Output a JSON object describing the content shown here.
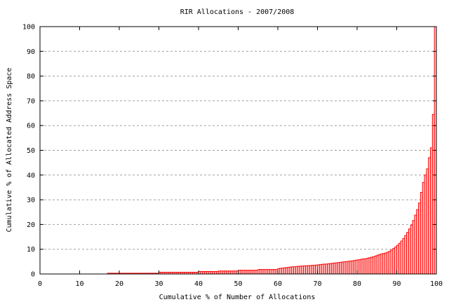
{
  "chart_data": {
    "type": "bar",
    "title": "RIR Allocations - 2007/2008",
    "xlabel": "Cumulative % of Number of Allocations",
    "ylabel": "Cumulative % of Allocated Address Space",
    "xlim": [
      0,
      100
    ],
    "ylim": [
      0,
      100
    ],
    "x_ticks": [
      "0",
      "10",
      "20",
      "30",
      "40",
      "50",
      "60",
      "70",
      "80",
      "90",
      "100"
    ],
    "y_ticks": [
      "0",
      "10",
      "20",
      "30",
      "40",
      "50",
      "60",
      "70",
      "80",
      "90",
      "100"
    ],
    "grid": "horizontal dashed",
    "bar_width": 0.5,
    "colors": {
      "bar_stroke": "#ff0000",
      "bar_fill": "#ffd0d0",
      "grid": "#a0a0a0"
    },
    "values": [
      0,
      0,
      0,
      0,
      0,
      0,
      0,
      0,
      0,
      0,
      0,
      0,
      0,
      0,
      0,
      0,
      0,
      0,
      0,
      0,
      0,
      0,
      0,
      0,
      0,
      0,
      0,
      0,
      0,
      0,
      0,
      0,
      0,
      0,
      0.3,
      0.3,
      0.3,
      0.3,
      0.3,
      0.3,
      0.3,
      0.3,
      0.3,
      0.3,
      0.3,
      0.3,
      0.3,
      0.3,
      0.3,
      0.3,
      0.3,
      0.3,
      0.3,
      0.3,
      0.3,
      0.3,
      0.3,
      0.3,
      0.3,
      0.3,
      0.7,
      0.7,
      0.7,
      0.7,
      0.7,
      0.7,
      0.7,
      0.7,
      0.7,
      0.7,
      0.7,
      0.7,
      0.7,
      0.7,
      0.7,
      0.7,
      0.7,
      0.7,
      0.7,
      0.7,
      1.0,
      1.0,
      1.0,
      1.0,
      1.0,
      1.0,
      1.0,
      1.0,
      1.0,
      1.0,
      1.2,
      1.2,
      1.2,
      1.2,
      1.2,
      1.2,
      1.2,
      1.2,
      1.2,
      1.2,
      1.5,
      1.5,
      1.5,
      1.5,
      1.5,
      1.5,
      1.5,
      1.5,
      1.5,
      1.5,
      1.8,
      1.8,
      1.8,
      1.8,
      1.8,
      1.8,
      1.8,
      1.8,
      1.8,
      1.8,
      2.2,
      2.3,
      2.4,
      2.5,
      2.6,
      2.7,
      2.8,
      2.9,
      2.9,
      3.0,
      3.1,
      3.2,
      3.2,
      3.3,
      3.3,
      3.4,
      3.4,
      3.5,
      3.5,
      3.6,
      3.7,
      3.8,
      3.9,
      4.0,
      4.0,
      4.1,
      4.2,
      4.3,
      4.4,
      4.5,
      4.6,
      4.7,
      4.8,
      4.9,
      5.0,
      5.1,
      5.2,
      5.3,
      5.4,
      5.6,
      5.7,
      5.8,
      6.0,
      6.1,
      6.2,
      6.4,
      6.6,
      6.8,
      7.0,
      7.3,
      7.6,
      7.9,
      8.1,
      8.3,
      8.5,
      8.8,
      9.2,
      9.7,
      10.3,
      10.9,
      11.6,
      12.4,
      13.3,
      14.3,
      15.5,
      16.8,
      18.2,
      19.8,
      21.6,
      23.8,
      26.0,
      28.7,
      33.0,
      37.0,
      40.0,
      42.5,
      47.0,
      51.0,
      64.5,
      100
    ]
  }
}
